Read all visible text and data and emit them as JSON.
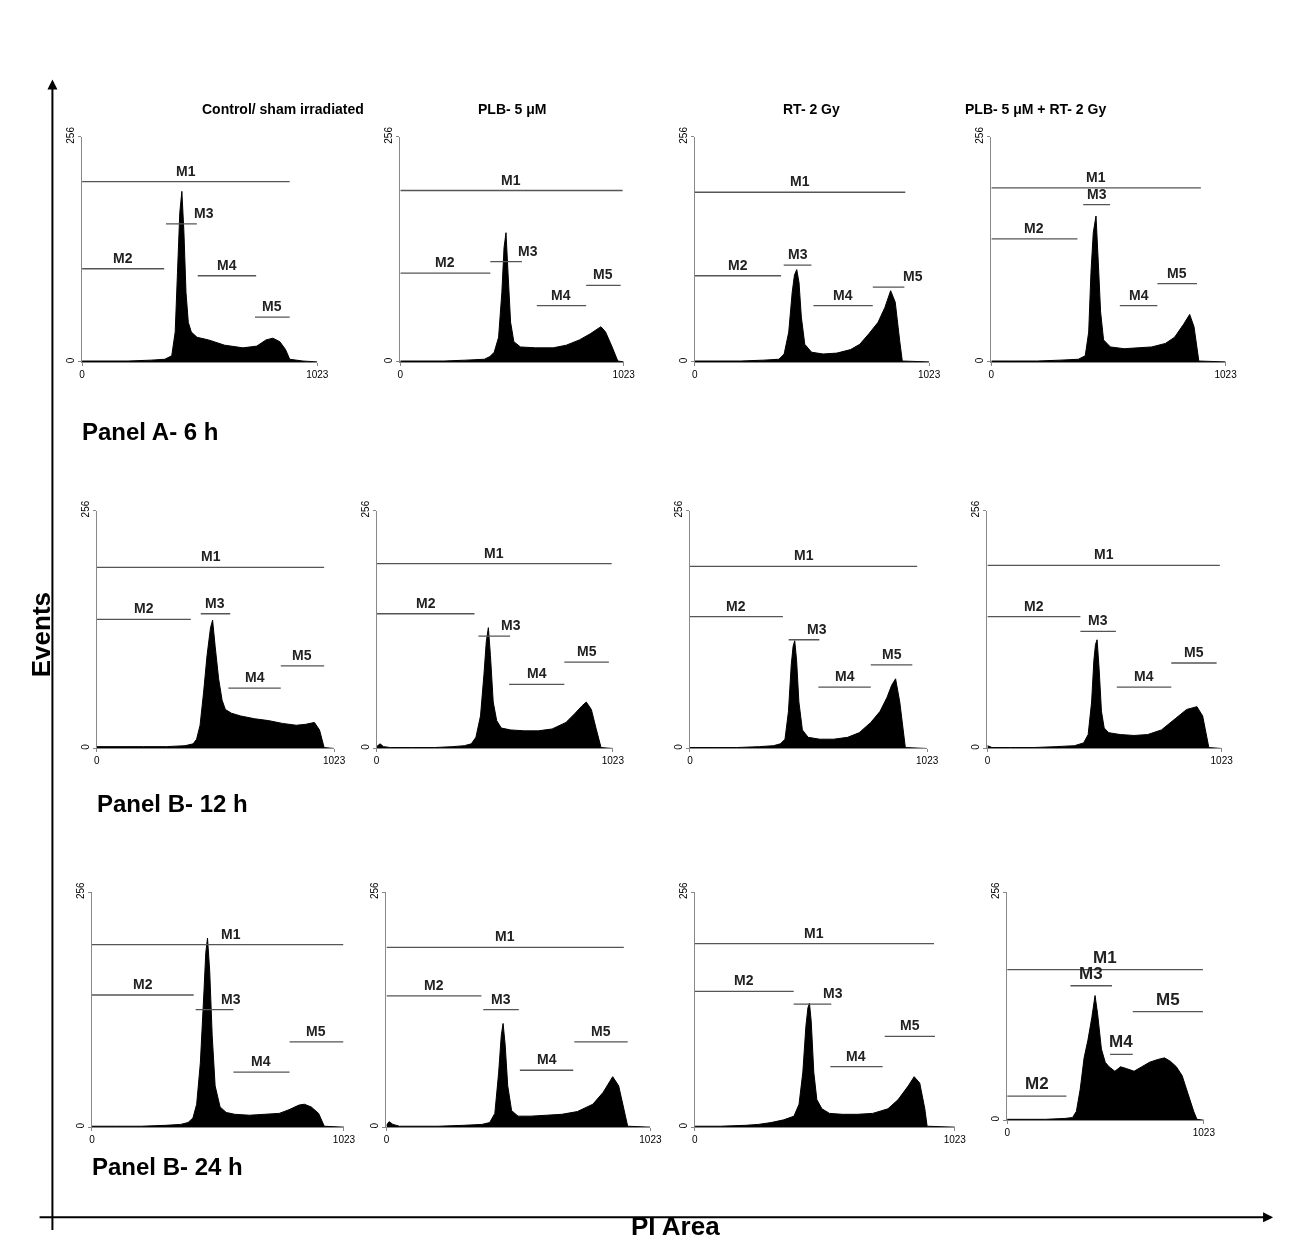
{
  "chart_data": [
    {
      "type": "area",
      "title": "Control/ sham irradiated",
      "xlim": [
        0,
        1023
      ],
      "ylim": [
        0,
        256
      ],
      "xticks": [
        0,
        1023
      ],
      "yticks": [
        0,
        256
      ],
      "annotations": [
        "Panel A- 6 h"
      ],
      "series": [
        {
          "color": "#000000",
          "x": [
            0,
            100,
            200,
            300,
            360,
            390,
            405,
            415,
            425,
            434,
            443,
            452,
            462,
            475,
            500,
            550,
            620,
            700,
            760,
            800,
            830,
            860,
            885,
            903,
            960,
            1023
          ],
          "values": [
            1,
            1,
            1,
            2,
            3,
            7,
            34,
            102,
            170,
            194,
            147,
            79,
            45,
            34,
            28,
            25,
            19,
            16,
            18,
            25,
            27,
            23,
            14,
            3,
            1,
            0
          ]
        },
        {
          "type": "line",
          "name": "M1",
          "color": "#555555",
          "x": [
            0,
            903
          ],
          "values": [
            205,
            205
          ]
        },
        {
          "type": "line",
          "name": "M2",
          "color": "#555555",
          "x": [
            0,
            357
          ],
          "values": [
            106,
            106
          ]
        },
        {
          "type": "line",
          "name": "M3",
          "color": "#555555",
          "x": [
            365,
            499
          ],
          "values": [
            157,
            157
          ]
        },
        {
          "type": "line",
          "name": "M4",
          "color": "#555555",
          "x": [
            503,
            757
          ],
          "values": [
            98,
            98
          ]
        },
        {
          "type": "line",
          "name": "M5",
          "color": "#555555",
          "x": [
            752,
            903
          ],
          "values": [
            51,
            51
          ]
        }
      ]
    },
    {
      "type": "area",
      "title": "PLB- 5 μM",
      "xlim": [
        0,
        1023
      ],
      "ylim": [
        0,
        256
      ],
      "xticks": [
        0,
        1023
      ],
      "yticks": [
        0,
        256
      ],
      "series": [
        {
          "color": "#000000",
          "x": [
            0,
            100,
            200,
            300,
            385,
            410,
            430,
            450,
            465,
            475,
            484,
            493,
            505,
            520,
            550,
            620,
            700,
            760,
            820,
            870,
            900,
            919,
            940,
            970,
            996,
            1023
          ],
          "values": [
            1,
            1,
            1,
            2,
            3,
            6,
            11,
            28,
            79,
            130,
            147,
            102,
            45,
            23,
            17,
            16,
            16,
            19,
            25,
            32,
            37,
            40,
            34,
            17,
            1,
            0
          ]
        },
        {
          "type": "line",
          "name": "M1",
          "color": "#555555",
          "x": [
            0,
            1018
          ],
          "values": [
            195,
            195
          ]
        },
        {
          "type": "line",
          "name": "M2",
          "color": "#555555",
          "x": [
            0,
            412
          ],
          "values": [
            101,
            101
          ]
        },
        {
          "type": "line",
          "name": "M3",
          "color": "#555555",
          "x": [
            412,
            557
          ],
          "values": [
            114,
            114
          ]
        },
        {
          "type": "line",
          "name": "M4",
          "color": "#555555",
          "x": [
            625,
            851
          ],
          "values": [
            64,
            64
          ]
        },
        {
          "type": "line",
          "name": "M5",
          "color": "#555555",
          "x": [
            851,
            1009
          ],
          "values": [
            87,
            87
          ]
        }
      ]
    },
    {
      "type": "area",
      "title": "RT- 2 Gy",
      "xlim": [
        0,
        1023
      ],
      "ylim": [
        0,
        256
      ],
      "xticks": [
        0,
        1023
      ],
      "yticks": [
        0,
        256
      ],
      "series": [
        {
          "color": "#000000",
          "x": [
            0,
            100,
            200,
            300,
            367,
            390,
            410,
            425,
            435,
            445,
            455,
            465,
            480,
            510,
            560,
            620,
            680,
            720,
            760,
            800,
            830,
            855,
            875,
            895,
            906,
            1023
          ],
          "values": [
            1,
            1,
            1,
            2,
            3,
            9,
            34,
            79,
            99,
            105,
            90,
            51,
            20,
            11,
            9,
            10,
            14,
            20,
            32,
            45,
            62,
            81,
            68,
            23,
            1,
            0
          ]
        },
        {
          "type": "line",
          "name": "M1",
          "color": "#555555",
          "x": [
            0,
            919
          ],
          "values": [
            193,
            193
          ]
        },
        {
          "type": "line",
          "name": "M2",
          "color": "#555555",
          "x": [
            0,
            376
          ],
          "values": [
            98,
            98
          ]
        },
        {
          "type": "line",
          "name": "M3",
          "color": "#555555",
          "x": [
            388,
            509
          ],
          "values": [
            110,
            110
          ]
        },
        {
          "type": "line",
          "name": "M4",
          "color": "#555555",
          "x": [
            518,
            777
          ],
          "values": [
            64,
            64
          ]
        },
        {
          "type": "line",
          "name": "M5",
          "color": "#555555",
          "x": [
            777,
            915
          ],
          "values": [
            85,
            85
          ]
        }
      ]
    },
    {
      "type": "area",
      "title": "PLB- 5 μM + RT- 2 Gy",
      "xlim": [
        0,
        1023
      ],
      "ylim": [
        0,
        256
      ],
      "xticks": [
        0,
        1023
      ],
      "yticks": [
        0,
        256
      ],
      "series": [
        {
          "color": "#000000",
          "x": [
            0,
            100,
            200,
            300,
            380,
            410,
            425,
            435,
            445,
            457,
            467,
            477,
            490,
            520,
            580,
            640,
            700,
            760,
            800,
            840,
            866,
            885,
            906,
            1023
          ],
          "values": [
            1,
            1,
            1,
            2,
            3,
            7,
            34,
            102,
            147,
            166,
            113,
            57,
            25,
            17,
            15,
            16,
            17,
            21,
            28,
            43,
            54,
            40,
            1,
            0
          ]
        },
        {
          "type": "line",
          "name": "M1",
          "color": "#555555",
          "x": [
            0,
            915
          ],
          "values": [
            198,
            198
          ]
        },
        {
          "type": "line",
          "name": "M2",
          "color": "#555555",
          "x": [
            0,
            376
          ],
          "values": [
            140,
            140
          ]
        },
        {
          "type": "line",
          "name": "M3",
          "color": "#555555",
          "x": [
            401,
            518
          ],
          "values": [
            179,
            179
          ]
        },
        {
          "type": "line",
          "name": "M4",
          "color": "#555555",
          "x": [
            561,
            725
          ],
          "values": [
            64,
            64
          ]
        },
        {
          "type": "line",
          "name": "M5",
          "color": "#555555",
          "x": [
            725,
            898
          ],
          "values": [
            89,
            89
          ]
        }
      ]
    },
    {
      "type": "area",
      "xlim": [
        0,
        1023
      ],
      "ylim": [
        0,
        256
      ],
      "xticks": [
        0,
        1023
      ],
      "yticks": [
        0,
        256
      ],
      "annotations": [
        "Panel B- 12 h"
      ],
      "series": [
        {
          "color": "#000000",
          "x": [
            0,
            100,
            200,
            300,
            380,
            415,
            430,
            445,
            460,
            475,
            490,
            499,
            510,
            525,
            540,
            554,
            580,
            620,
            680,
            740,
            800,
            860,
            900,
            938,
            960,
            980,
            1023
          ],
          "values": [
            2,
            2,
            2,
            2,
            3,
            5,
            10,
            25,
            60,
            100,
            130,
            138,
            110,
            75,
            52,
            42,
            38,
            35,
            32,
            30,
            27,
            25,
            26,
            28,
            20,
            1,
            0
          ]
        },
        {
          "type": "line",
          "name": "M1",
          "color": "#555555",
          "x": [
            0,
            980
          ],
          "values": [
            195,
            195
          ]
        },
        {
          "type": "line",
          "name": "M2",
          "color": "#555555",
          "x": [
            0,
            405
          ],
          "values": [
            139,
            139
          ]
        },
        {
          "type": "line",
          "name": "M3",
          "color": "#555555",
          "x": [
            448,
            575
          ],
          "values": [
            145,
            145
          ]
        },
        {
          "type": "line",
          "name": "M4",
          "color": "#555555",
          "x": [
            567,
            793
          ],
          "values": [
            65,
            65
          ]
        },
        {
          "type": "line",
          "name": "M5",
          "color": "#555555",
          "x": [
            793,
            980
          ],
          "values": [
            89,
            89
          ]
        }
      ]
    },
    {
      "type": "area",
      "xlim": [
        0,
        1023
      ],
      "ylim": [
        0,
        256
      ],
      "xticks": [
        0,
        1023
      ],
      "yticks": [
        0,
        256
      ],
      "series": [
        {
          "color": "#000000",
          "x": [
            0,
            15,
            30,
            60,
            150,
            250,
            330,
            380,
            410,
            430,
            450,
            465,
            475,
            484,
            493,
            505,
            520,
            540,
            580,
            640,
            700,
            760,
            820,
            860,
            890,
            908,
            930,
            950,
            972,
            1023
          ],
          "values": [
            2,
            5,
            2,
            1,
            1,
            1,
            2,
            3,
            5,
            12,
            35,
            80,
            115,
            130,
            100,
            50,
            30,
            22,
            20,
            19,
            19,
            21,
            28,
            38,
            46,
            50,
            42,
            22,
            1,
            0
          ]
        },
        {
          "type": "line",
          "name": "M1",
          "color": "#555555",
          "x": [
            0,
            1018
          ],
          "values": [
            199,
            199
          ]
        },
        {
          "type": "line",
          "name": "M2",
          "color": "#555555",
          "x": [
            0,
            424
          ],
          "values": [
            145,
            145
          ]
        },
        {
          "type": "line",
          "name": "M3",
          "color": "#555555",
          "x": [
            441,
            578
          ],
          "values": [
            121,
            121
          ]
        },
        {
          "type": "line",
          "name": "M4",
          "color": "#555555",
          "x": [
            574,
            813
          ],
          "values": [
            69,
            69
          ]
        },
        {
          "type": "line",
          "name": "M5",
          "color": "#555555",
          "x": [
            813,
            1006
          ],
          "values": [
            93,
            93
          ]
        }
      ]
    },
    {
      "type": "area",
      "xlim": [
        0,
        1023
      ],
      "ylim": [
        0,
        256
      ],
      "xticks": [
        0,
        1023
      ],
      "yticks": [
        0,
        256
      ],
      "series": [
        {
          "color": "#000000",
          "x": [
            0,
            100,
            200,
            300,
            360,
            390,
            410,
            425,
            437,
            445,
            452,
            460,
            470,
            485,
            510,
            560,
            620,
            680,
            730,
            780,
            820,
            850,
            870,
            887,
            905,
            929,
            1023
          ],
          "values": [
            1,
            1,
            1,
            2,
            3,
            5,
            10,
            40,
            90,
            110,
            116,
            95,
            50,
            20,
            12,
            10,
            10,
            12,
            17,
            28,
            40,
            55,
            68,
            75,
            50,
            1,
            0
          ]
        },
        {
          "type": "line",
          "name": "M1",
          "color": "#555555",
          "x": [
            0,
            980
          ],
          "values": [
            196,
            196
          ]
        },
        {
          "type": "line",
          "name": "M2",
          "color": "#555555",
          "x": [
            0,
            401
          ],
          "values": [
            142,
            142
          ]
        },
        {
          "type": "line",
          "name": "M3",
          "color": "#555555",
          "x": [
            426,
            558
          ],
          "values": [
            117,
            117
          ]
        },
        {
          "type": "line",
          "name": "M4",
          "color": "#555555",
          "x": [
            554,
            780
          ],
          "values": [
            66,
            66
          ]
        },
        {
          "type": "line",
          "name": "M5",
          "color": "#555555",
          "x": [
            780,
            959
          ],
          "values": [
            90,
            90
          ]
        }
      ]
    },
    {
      "type": "area",
      "xlim": [
        0,
        1023
      ],
      "ylim": [
        0,
        256
      ],
      "xticks": [
        0,
        1023
      ],
      "yticks": [
        0,
        256
      ],
      "series": [
        {
          "color": "#000000",
          "x": [
            0,
            20,
            100,
            200,
            300,
            380,
            420,
            440,
            455,
            465,
            472,
            479,
            488,
            498,
            510,
            530,
            580,
            640,
            700,
            760,
            820,
            870,
            915,
            940,
            967,
            1023
          ],
          "values": [
            3,
            1,
            1,
            1,
            2,
            3,
            6,
            15,
            50,
            95,
            112,
            117,
            85,
            40,
            22,
            17,
            15,
            14,
            15,
            20,
            32,
            42,
            45,
            35,
            1,
            0
          ]
        },
        {
          "type": "line",
          "name": "M1",
          "color": "#555555",
          "x": [
            0,
            1015
          ],
          "values": [
            197,
            197
          ]
        },
        {
          "type": "line",
          "name": "M2",
          "color": "#555555",
          "x": [
            0,
            406
          ],
          "values": [
            142,
            142
          ]
        },
        {
          "type": "line",
          "name": "M3",
          "color": "#555555",
          "x": [
            406,
            561
          ],
          "values": [
            126,
            126
          ]
        },
        {
          "type": "line",
          "name": "M4",
          "color": "#555555",
          "x": [
            565,
            803
          ],
          "values": [
            66,
            66
          ]
        },
        {
          "type": "line",
          "name": "M5",
          "color": "#555555",
          "x": [
            803,
            1001
          ],
          "values": [
            92,
            92
          ]
        }
      ]
    },
    {
      "type": "area",
      "xlim": [
        0,
        1023
      ],
      "ylim": [
        0,
        256
      ],
      "xticks": [
        0,
        1023
      ],
      "yticks": [
        0,
        256
      ],
      "annotations": [
        "Panel B- 24 h"
      ],
      "series": [
        {
          "color": "#000000",
          "x": [
            0,
            100,
            200,
            300,
            360,
            390,
            410,
            425,
            440,
            455,
            462,
            469,
            478,
            488,
            500,
            520,
            545,
            580,
            640,
            700,
            760,
            800,
            840,
            862,
            890,
            920,
            943,
            1023
          ],
          "values": [
            1,
            1,
            1,
            2,
            3,
            5,
            10,
            25,
            70,
            150,
            190,
            206,
            170,
            100,
            45,
            22,
            16,
            14,
            13,
            14,
            15,
            19,
            24,
            25,
            22,
            15,
            1,
            0
          ]
        },
        {
          "type": "line",
          "name": "M1",
          "color": "#555555",
          "x": [
            0,
            1020
          ],
          "values": [
            199,
            199
          ]
        },
        {
          "type": "line",
          "name": "M2",
          "color": "#555555",
          "x": [
            0,
            413
          ],
          "values": [
            144,
            144
          ]
        },
        {
          "type": "line",
          "name": "M3",
          "color": "#555555",
          "x": [
            421,
            574
          ],
          "values": [
            128,
            128
          ]
        },
        {
          "type": "line",
          "name": "M4",
          "color": "#555555",
          "x": [
            574,
            802
          ],
          "values": [
            60,
            60
          ]
        },
        {
          "type": "line",
          "name": "M5",
          "color": "#555555",
          "x": [
            802,
            1020
          ],
          "values": [
            93,
            93
          ]
        }
      ]
    },
    {
      "type": "area",
      "xlim": [
        0,
        1023
      ],
      "ylim": [
        0,
        256
      ],
      "xticks": [
        0,
        1023
      ],
      "yticks": [
        0,
        256
      ],
      "series": [
        {
          "color": "#000000",
          "x": [
            0,
            10,
            25,
            50,
            100,
            200,
            300,
            370,
            400,
            420,
            435,
            445,
            452,
            460,
            470,
            485,
            510,
            560,
            620,
            680,
            740,
            800,
            840,
            877,
            900,
            920,
            935,
            1023
          ],
          "values": [
            2,
            6,
            3,
            1,
            1,
            1,
            2,
            3,
            5,
            15,
            60,
            100,
            113,
            90,
            45,
            18,
            12,
            12,
            13,
            14,
            17,
            25,
            38,
            55,
            45,
            20,
            1,
            0
          ]
        },
        {
          "type": "line",
          "name": "M1",
          "color": "#555555",
          "x": [
            0,
            920
          ],
          "values": [
            196,
            196
          ]
        },
        {
          "type": "line",
          "name": "M2",
          "color": "#555555",
          "x": [
            0,
            368
          ],
          "values": [
            143,
            143
          ]
        },
        {
          "type": "line",
          "name": "M3",
          "color": "#555555",
          "x": [
            375,
            513
          ],
          "values": [
            128,
            128
          ]
        },
        {
          "type": "line",
          "name": "M4",
          "color": "#555555",
          "x": [
            517,
            724
          ],
          "values": [
            62,
            62
          ]
        },
        {
          "type": "line",
          "name": "M5",
          "color": "#555555",
          "x": [
            728,
            935
          ],
          "values": [
            93,
            93
          ]
        }
      ]
    },
    {
      "type": "area",
      "xlim": [
        0,
        1023
      ],
      "ylim": [
        0,
        256
      ],
      "xticks": [
        0,
        1023
      ],
      "yticks": [
        0,
        256
      ],
      "series": [
        {
          "color": "#000000",
          "x": [
            0,
            100,
            200,
            250,
            300,
            350,
            390,
            410,
            425,
            437,
            445,
            451,
            458,
            468,
            480,
            500,
            530,
            580,
            640,
            700,
            760,
            800,
            840,
            863,
            885,
            905,
            914,
            1023
          ],
          "values": [
            1,
            1,
            2,
            3,
            5,
            8,
            12,
            25,
            60,
            110,
            130,
            135,
            115,
            60,
            30,
            20,
            15,
            14,
            14,
            15,
            20,
            30,
            45,
            55,
            48,
            20,
            1,
            0
          ]
        },
        {
          "type": "line",
          "name": "M1",
          "color": "#555555",
          "x": [
            0,
            941
          ],
          "values": [
            200,
            200
          ]
        },
        {
          "type": "line",
          "name": "M2",
          "color": "#555555",
          "x": [
            0,
            389
          ],
          "values": [
            148,
            148
          ]
        },
        {
          "type": "line",
          "name": "M3",
          "color": "#555555",
          "x": [
            389,
            537
          ],
          "values": [
            134,
            134
          ]
        },
        {
          "type": "line",
          "name": "M4",
          "color": "#555555",
          "x": [
            533,
            739
          ],
          "values": [
            66,
            66
          ]
        },
        {
          "type": "line",
          "name": "M5",
          "color": "#555555",
          "x": [
            747,
            945
          ],
          "values": [
            99,
            99
          ]
        }
      ]
    },
    {
      "type": "area",
      "xlim": [
        0,
        1023
      ],
      "ylim": [
        0,
        256
      ],
      "xticks": [
        0,
        1023
      ],
      "yticks": [
        0,
        256
      ],
      "series": [
        {
          "color": "#000000",
          "x": [
            0,
            100,
            200,
            300,
            340,
            360,
            380,
            400,
            420,
            440,
            457,
            470,
            490,
            510,
            530,
            560,
            590,
            620,
            660,
            700,
            740,
            780,
            818,
            850,
            880,
            910,
            940,
            970,
            987,
            1023
          ],
          "values": [
            1,
            1,
            1,
            2,
            3,
            10,
            35,
            70,
            90,
            115,
            140,
            120,
            80,
            65,
            60,
            55,
            60,
            58,
            55,
            60,
            65,
            68,
            70,
            66,
            60,
            50,
            30,
            10,
            1,
            0
          ]
        },
        {
          "type": "line",
          "name": "M1",
          "color": "#555555",
          "x": [
            0,
            1018
          ],
          "values": [
            169,
            169
          ]
        },
        {
          "type": "line",
          "name": "M2",
          "color": "#555555",
          "x": [
            0,
            308
          ],
          "values": [
            27,
            27
          ]
        },
        {
          "type": "line",
          "name": "M3",
          "color": "#555555",
          "x": [
            329,
            545
          ],
          "values": [
            151,
            151
          ]
        },
        {
          "type": "line",
          "name": "M4",
          "color": "#555555",
          "x": [
            535,
            653
          ],
          "values": [
            74,
            74
          ]
        },
        {
          "type": "line",
          "name": "M5",
          "color": "#555555",
          "x": [
            653,
            1018
          ],
          "values": [
            122,
            122
          ]
        }
      ]
    },
    {
      "type": "other",
      "ylabel": "Events",
      "xlabel": "PI Area"
    }
  ]
}
